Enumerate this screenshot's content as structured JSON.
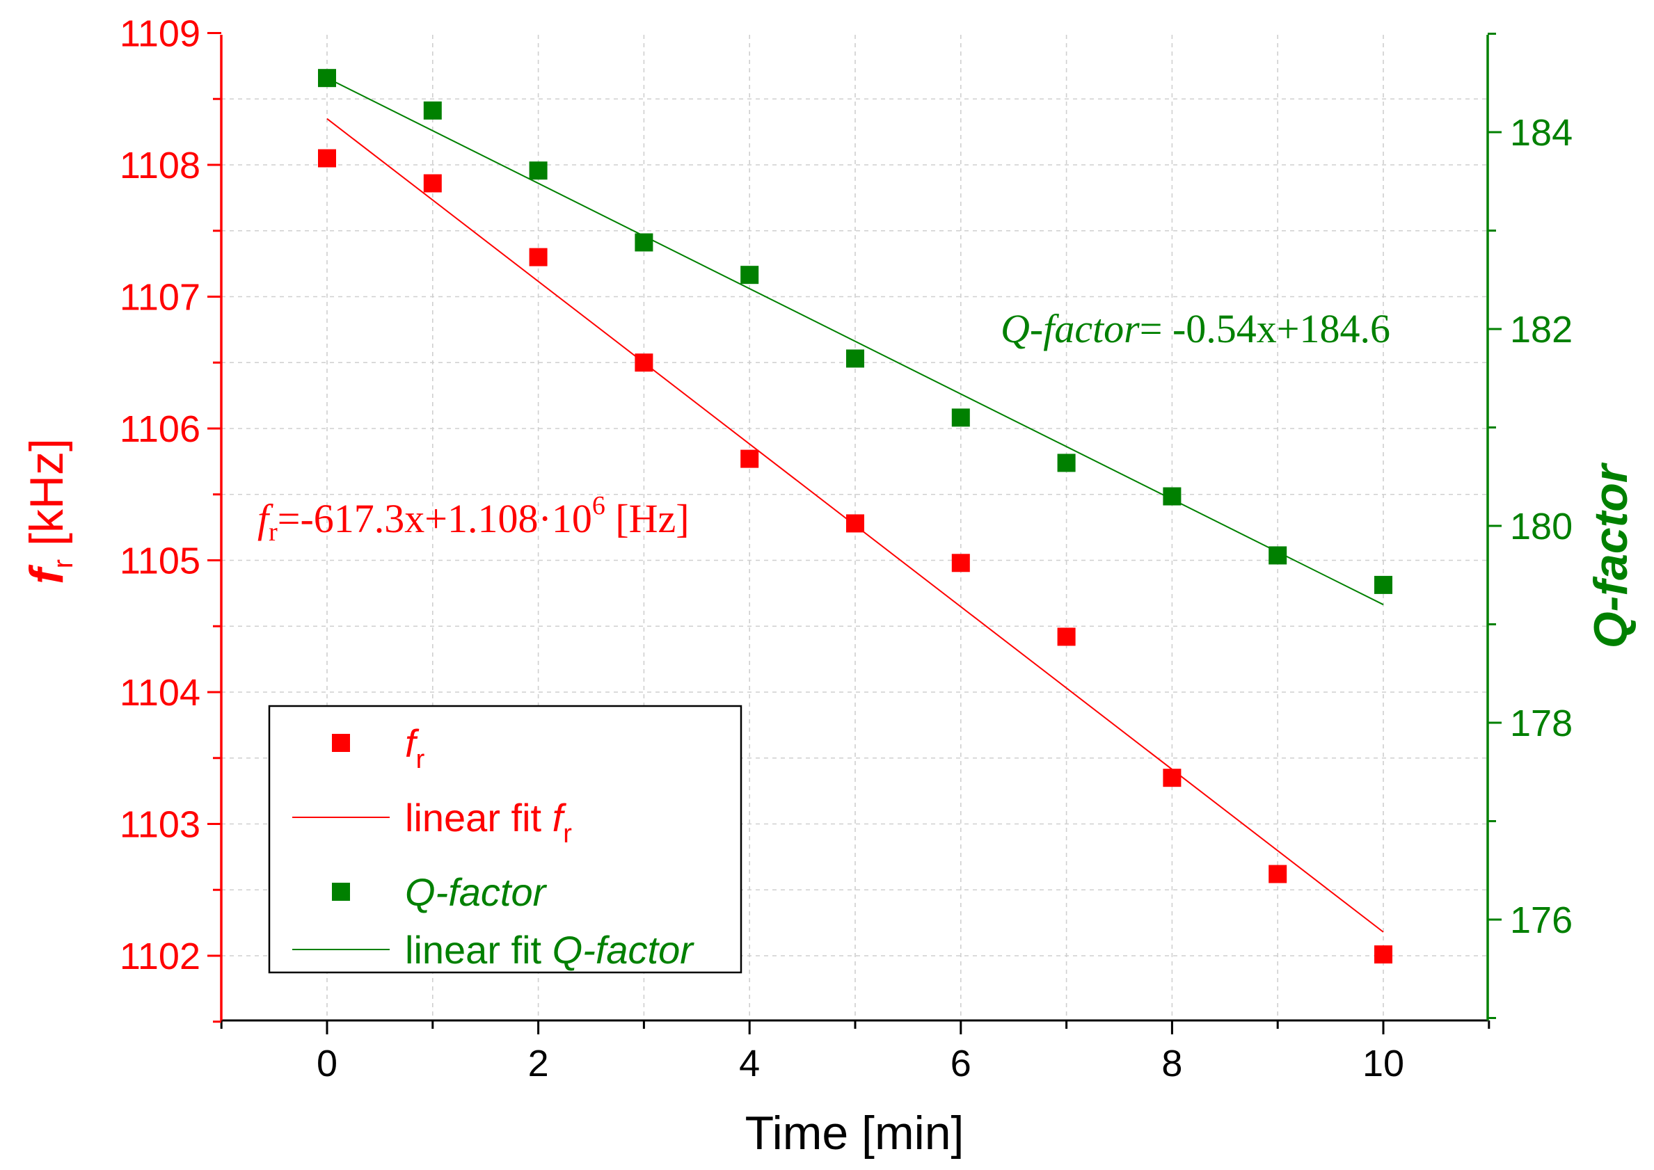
{
  "chart_data": {
    "type": "scatter",
    "x_axis": {
      "label": "Time [min]",
      "range": [
        -1,
        11
      ],
      "ticks": [
        0,
        2,
        4,
        6,
        8,
        10
      ],
      "grid": true
    },
    "y_left": {
      "label_symbol": "f",
      "label_subscript": "r",
      "label_unit": " [kHz]",
      "range": [
        1101.5,
        1109
      ],
      "ticks": [
        1102,
        1103,
        1104,
        1105,
        1106,
        1107,
        1108,
        1109
      ],
      "color": "#ff0000"
    },
    "y_right": {
      "label": "Q-factor",
      "range": [
        175,
        185
      ],
      "ticks": [
        176,
        178,
        180,
        182,
        184
      ],
      "color": "#008000"
    },
    "series": [
      {
        "name": "f_r",
        "axis": "left",
        "kind": "scatter",
        "color": "#ff0000",
        "x": [
          0,
          1,
          2,
          3,
          4,
          5,
          6,
          7,
          8,
          9,
          10
        ],
        "y": [
          1108.05,
          1107.86,
          1107.3,
          1106.5,
          1105.77,
          1105.28,
          1104.98,
          1104.42,
          1103.35,
          1102.62,
          1102.01
        ]
      },
      {
        "name": "Q-factor",
        "axis": "right",
        "kind": "scatter",
        "color": "#008000",
        "x": [
          0,
          1,
          2,
          3,
          4,
          5,
          6,
          7,
          8,
          9,
          10
        ],
        "y": [
          184.55,
          184.22,
          183.61,
          182.88,
          182.55,
          181.7,
          181.1,
          180.64,
          180.3,
          179.7,
          179.4
        ]
      },
      {
        "name": "linear fit f_r",
        "axis": "left",
        "kind": "line",
        "color": "#ff0000",
        "x": [
          0,
          10
        ],
        "y": [
          1108.35,
          1102.18
        ]
      },
      {
        "name": "linear fit Q-factor",
        "axis": "right",
        "kind": "line",
        "color": "#008000",
        "x": [
          0,
          10
        ],
        "y": [
          184.55,
          179.2
        ]
      }
    ],
    "annotations": {
      "fr_fit": {
        "symbol": "f",
        "subscript": "r",
        "body": "=-617.3x+1.108·10",
        "superscript": "6",
        "tail": " [Hz]",
        "color": "#ff0000"
      },
      "q_fit": {
        "label": "Q-factor",
        "body": "= -0.54x+184.6",
        "color": "#008000"
      }
    },
    "legend": {
      "position": "bottom-left",
      "entries": [
        {
          "text": "f",
          "subscript": "r",
          "marker": "square",
          "color": "#ff0000"
        },
        {
          "prefix": "linear fit ",
          "text": "f",
          "subscript": "r",
          "marker": "line",
          "color": "#ff0000"
        },
        {
          "text": "Q-factor",
          "marker": "square",
          "color": "#008000"
        },
        {
          "prefix": "linear fit ",
          "text": "Q-factor",
          "marker": "line",
          "color": "#008000"
        }
      ]
    }
  }
}
